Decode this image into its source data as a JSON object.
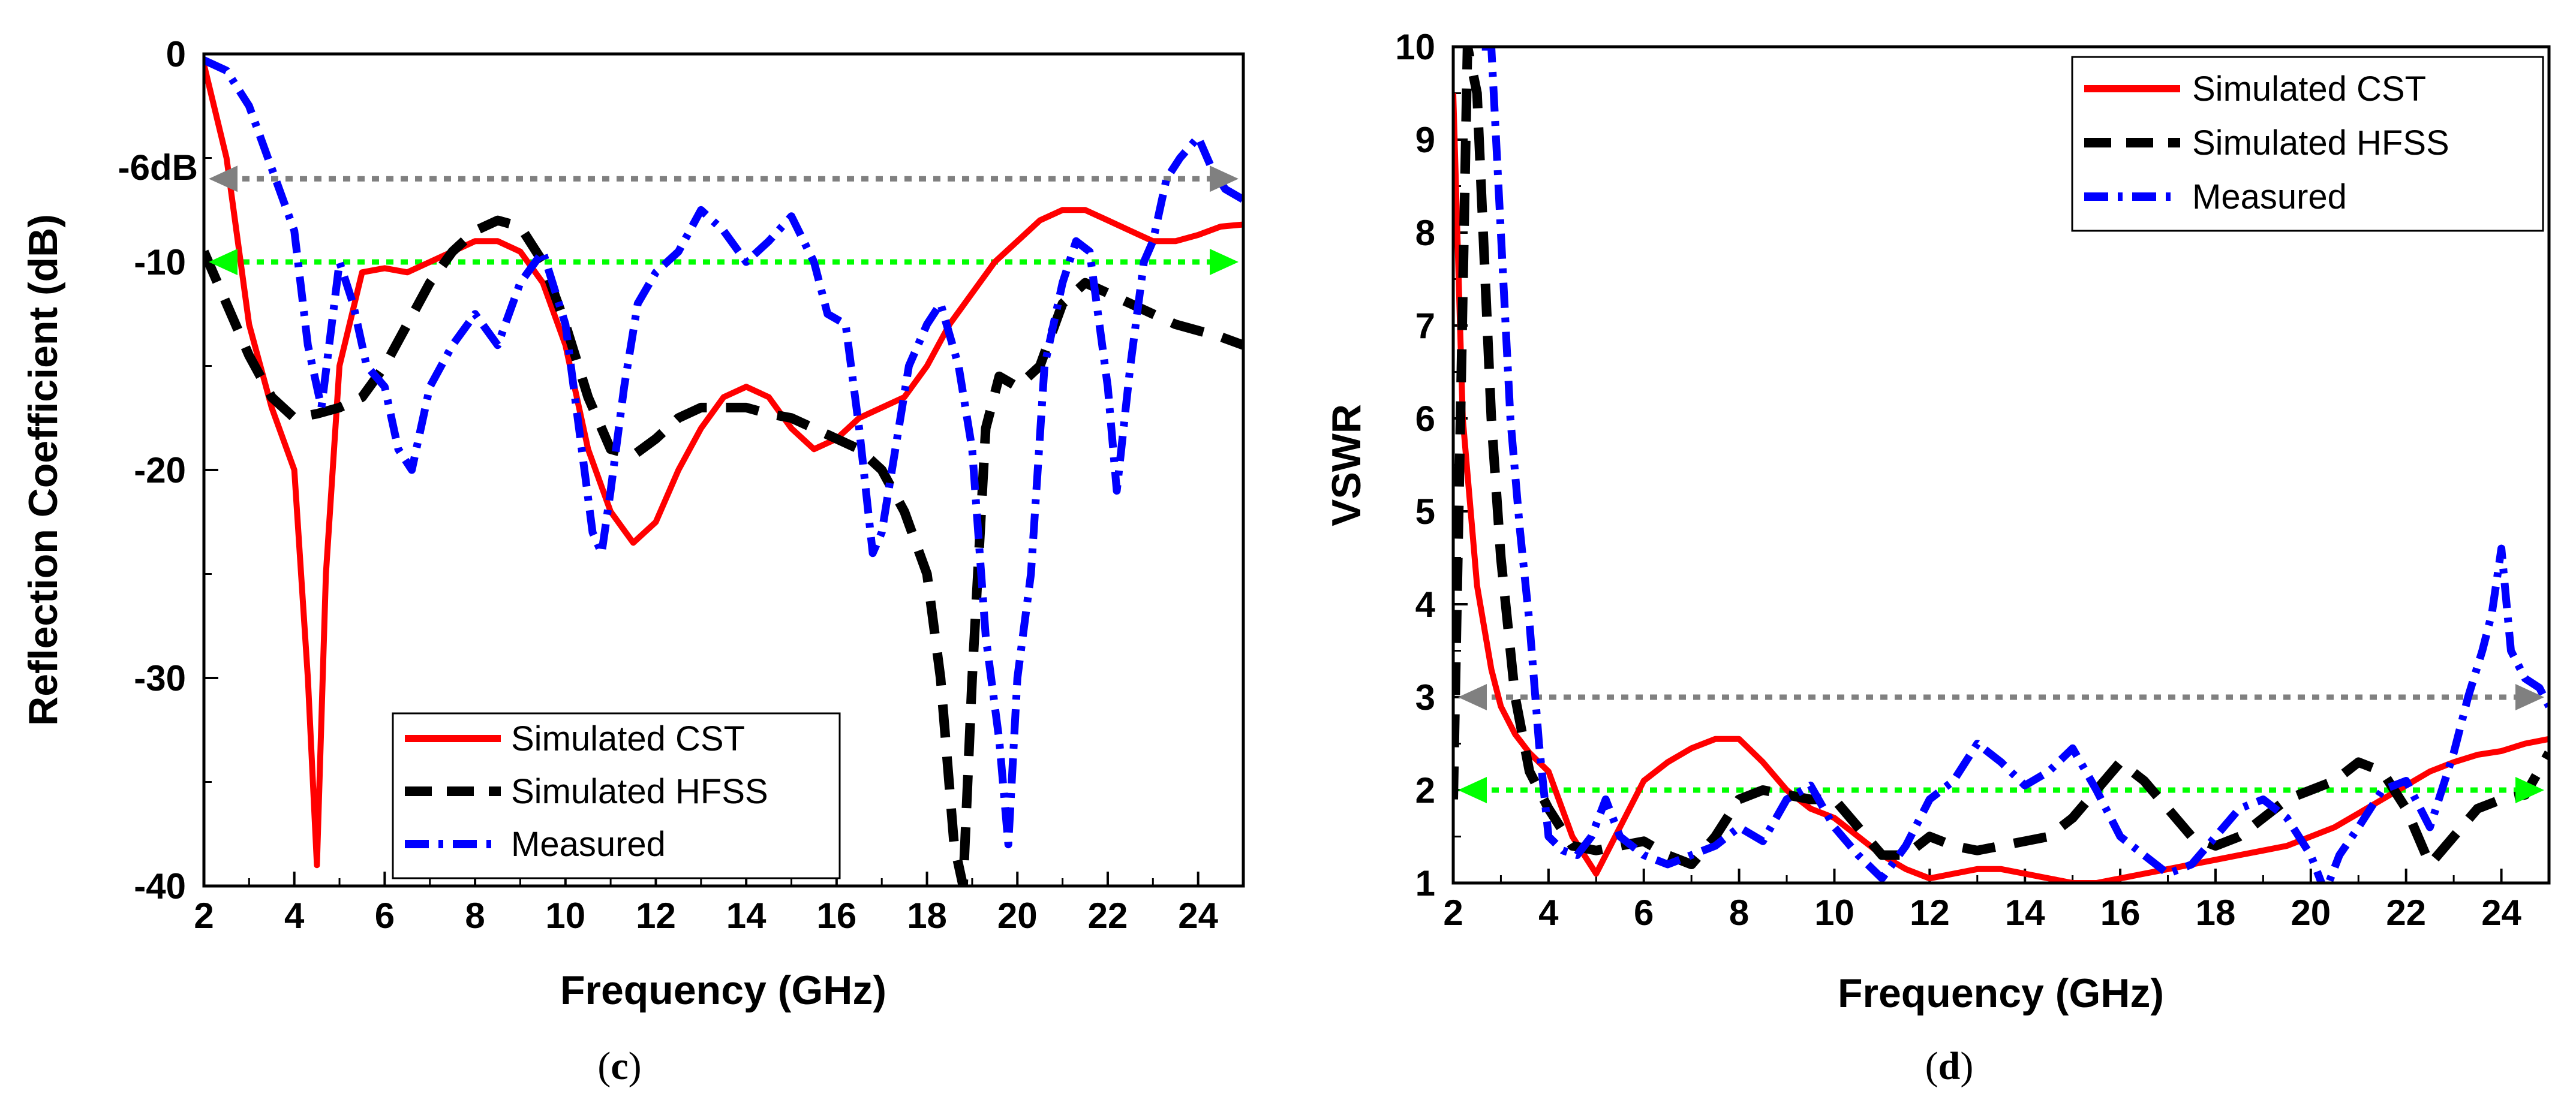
{
  "colors": {
    "cst": "#ff0000",
    "hfss": "#000000",
    "measured": "#0000ff",
    "ref6": "#808080",
    "ref10": "#00ff00"
  },
  "chart_data": [
    {
      "type": "line",
      "title": "",
      "caption_prefix": "(",
      "caption_letter": "c",
      "caption_suffix": ")",
      "xlabel": "Frequency (GHz)",
      "ylabel": "Reflection Coefficient (dB)",
      "xlim": [
        2,
        25
      ],
      "ylim": [
        -40,
        0
      ],
      "xticks": [
        "2",
        "4",
        "6",
        "8",
        "10",
        "12",
        "14",
        "16",
        "18",
        "20",
        "22",
        "24"
      ],
      "xtick_values": [
        2,
        4,
        6,
        8,
        10,
        12,
        14,
        16,
        18,
        20,
        22,
        24
      ],
      "yticks": [
        "0",
        "-10",
        "-20",
        "-30",
        "-40"
      ],
      "ytick_values": [
        0,
        -10,
        -20,
        -30,
        -40
      ],
      "annotation": "-6dB",
      "ref_lines": [
        {
          "name": "-6 dB reference",
          "value": -6,
          "color_key": "ref6"
        },
        {
          "name": "-10 dB reference",
          "value": -10,
          "color_key": "ref10"
        }
      ],
      "legend": {
        "placement": "bottom-center",
        "entries": [
          "Simulated CST",
          "Simulated HFSS",
          "Measured"
        ]
      },
      "series": [
        {
          "name": "Simulated CST",
          "style": "solid",
          "color_key": "cst",
          "x": [
            2,
            2.5,
            3,
            3.5,
            4,
            4.3,
            4.5,
            4.7,
            5,
            5.5,
            6,
            6.5,
            7,
            7.5,
            8,
            8.5,
            9,
            9.5,
            10,
            10.5,
            11,
            11.5,
            12,
            12.5,
            13,
            13.5,
            14,
            14.5,
            15,
            15.5,
            16,
            16.5,
            17,
            17.5,
            18,
            18.5,
            19,
            19.5,
            20,
            20.5,
            21,
            21.5,
            22,
            22.5,
            23,
            23.5,
            24,
            24.5,
            25
          ],
          "y": [
            -0.5,
            -5,
            -13,
            -17,
            -20,
            -30,
            -39,
            -25,
            -15,
            -10.5,
            -10.3,
            -10.5,
            -10,
            -9.5,
            -9,
            -9,
            -9.5,
            -11,
            -14,
            -19,
            -22,
            -23.5,
            -22.5,
            -20,
            -18,
            -16.5,
            -16,
            -16.5,
            -18,
            -19,
            -18.5,
            -17.5,
            -17,
            -16.5,
            -15,
            -13,
            -11.5,
            -10,
            -9,
            -8,
            -7.5,
            -7.5,
            -8,
            -8.5,
            -9,
            -9,
            -8.7,
            -8.3,
            -8.2
          ]
        },
        {
          "name": "Simulated HFSS",
          "style": "dashed",
          "color_key": "hfss",
          "x": [
            2,
            2.5,
            3,
            3.5,
            4,
            4.5,
            5,
            5.5,
            6,
            6.5,
            7,
            7.5,
            8,
            8.5,
            9,
            9.5,
            10,
            10.5,
            11,
            11.5,
            12,
            12.5,
            13,
            13.5,
            14,
            14.5,
            15,
            15.5,
            16,
            16.5,
            17,
            17.5,
            18,
            18.3,
            18.6,
            18.8,
            19,
            19.3,
            19.6,
            20,
            20.5,
            21,
            21.5,
            22,
            22.5,
            23,
            23.5,
            24,
            24.5,
            25
          ],
          "y": [
            -9.5,
            -12,
            -14.5,
            -16.5,
            -17.5,
            -17.3,
            -17,
            -16.5,
            -15,
            -13,
            -11,
            -9.5,
            -8.5,
            -8,
            -8.3,
            -10,
            -13,
            -16.5,
            -19,
            -19.3,
            -18.5,
            -17.5,
            -17,
            -17,
            -17,
            -17.3,
            -17.5,
            -18,
            -18.5,
            -19,
            -20,
            -22,
            -25,
            -30,
            -38,
            -40,
            -30,
            -18,
            -15.5,
            -16,
            -15,
            -12,
            -11,
            -11.5,
            -12,
            -12.5,
            -13,
            -13.3,
            -13.6,
            -14
          ]
        },
        {
          "name": "Measured",
          "style": "dashdot",
          "color_key": "measured",
          "x": [
            2,
            2.5,
            3,
            3.5,
            4,
            4.3,
            4.6,
            5,
            5.3,
            5.6,
            6,
            6.3,
            6.6,
            7,
            7.5,
            8,
            8.5,
            9,
            9.5,
            10,
            10.3,
            10.6,
            10.8,
            11,
            11.3,
            11.6,
            12,
            12.5,
            13,
            13.5,
            14,
            14.5,
            15,
            15.5,
            15.8,
            16.2,
            16.5,
            16.8,
            17,
            17.3,
            17.6,
            18,
            18.3,
            18.7,
            19,
            19.3,
            19.6,
            19.8,
            20,
            20.3,
            20.6,
            21,
            21.3,
            21.6,
            22,
            22.2,
            22.5,
            22.8,
            23,
            23.3,
            23.6,
            24,
            24.3,
            24.6,
            25
          ],
          "y": [
            -0.3,
            -0.8,
            -2.5,
            -5.5,
            -8.5,
            -14,
            -17,
            -10,
            -12,
            -15,
            -16,
            -19,
            -20,
            -16,
            -14,
            -12.5,
            -14,
            -11,
            -9.5,
            -13,
            -18,
            -23,
            -24,
            -21,
            -16,
            -12,
            -10.5,
            -9.5,
            -7.5,
            -8.5,
            -10,
            -9,
            -7.8,
            -10,
            -12.5,
            -13,
            -18,
            -24,
            -23,
            -19,
            -15,
            -13,
            -12,
            -15,
            -19,
            -28,
            -33,
            -38,
            -30,
            -25,
            -15,
            -11,
            -9,
            -9.5,
            -16,
            -21,
            -15,
            -10,
            -9,
            -6,
            -5,
            -4,
            -5.5,
            -6.5,
            -7
          ]
        }
      ]
    },
    {
      "type": "line",
      "title": "",
      "caption_prefix": "(",
      "caption_letter": "d",
      "caption_suffix": ")",
      "xlabel": "Frequency (GHz)",
      "ylabel": "VSWR",
      "xlim": [
        2,
        25
      ],
      "ylim": [
        1,
        10
      ],
      "xticks": [
        "2",
        "4",
        "6",
        "8",
        "10",
        "12",
        "14",
        "16",
        "18",
        "20",
        "22",
        "24"
      ],
      "xtick_values": [
        2,
        4,
        6,
        8,
        10,
        12,
        14,
        16,
        18,
        20,
        22,
        24
      ],
      "yticks": [
        "1",
        "2",
        "3",
        "4",
        "5",
        "6",
        "7",
        "8",
        "9",
        "10"
      ],
      "ytick_values": [
        1,
        2,
        3,
        4,
        5,
        6,
        7,
        8,
        9,
        10
      ],
      "ref_lines": [
        {
          "name": "VSWR 3 reference",
          "value": 3,
          "color_key": "ref6"
        },
        {
          "name": "VSWR 2 reference",
          "value": 2,
          "color_key": "ref10"
        }
      ],
      "legend": {
        "placement": "top-right",
        "entries": [
          "Simulated CST",
          "Simulated HFSS",
          "Measured"
        ]
      },
      "series": [
        {
          "name": "Simulated CST",
          "style": "solid",
          "color_key": "cst",
          "x": [
            2,
            2.2,
            2.5,
            2.8,
            3,
            3.3,
            3.6,
            4,
            4.5,
            5,
            5.5,
            6,
            6.5,
            7,
            7.5,
            8,
            8.5,
            9,
            9.5,
            10,
            10.5,
            11,
            11.5,
            12,
            12.5,
            13,
            13.5,
            14,
            14.5,
            15,
            15.5,
            16,
            16.5,
            17,
            17.5,
            18,
            18.5,
            19,
            19.5,
            20,
            20.5,
            21,
            21.5,
            22,
            22.5,
            23,
            23.5,
            24,
            24.5,
            25
          ],
          "y": [
            9.5,
            6,
            4.2,
            3.3,
            2.9,
            2.6,
            2.4,
            2.2,
            1.5,
            1.1,
            1.6,
            2.1,
            2.3,
            2.45,
            2.55,
            2.55,
            2.3,
            2,
            1.8,
            1.7,
            1.5,
            1.3,
            1.15,
            1.05,
            1.1,
            1.15,
            1.15,
            1.1,
            1.05,
            1.0,
            1.0,
            1.05,
            1.1,
            1.15,
            1.2,
            1.25,
            1.3,
            1.35,
            1.4,
            1.5,
            1.6,
            1.75,
            1.9,
            2.05,
            2.2,
            2.3,
            2.38,
            2.42,
            2.5,
            2.55
          ]
        },
        {
          "name": "Simulated HFSS",
          "style": "dashed",
          "color_key": "hfss",
          "x": [
            2,
            2.3,
            2.5,
            2.8,
            3,
            3.3,
            3.6,
            4,
            4.5,
            5,
            5.5,
            6,
            6.5,
            7,
            7.5,
            8,
            8.5,
            9,
            9.5,
            10,
            10.5,
            11,
            11.5,
            12,
            12.5,
            13,
            13.5,
            14,
            14.5,
            15,
            15.5,
            16,
            16.5,
            17,
            17.5,
            18,
            18.5,
            19,
            19.5,
            20,
            20.5,
            21,
            21.5,
            22,
            22.5,
            23,
            23.5,
            24,
            24.5,
            25
          ],
          "y": [
            1.9,
            10,
            9.5,
            6,
            4.5,
            3,
            2.2,
            1.8,
            1.4,
            1.35,
            1.4,
            1.45,
            1.3,
            1.2,
            1.5,
            1.9,
            2,
            1.95,
            1.9,
            1.9,
            1.6,
            1.3,
            1.3,
            1.5,
            1.4,
            1.35,
            1.4,
            1.45,
            1.5,
            1.7,
            2.0,
            2.3,
            2.1,
            1.8,
            1.5,
            1.4,
            1.5,
            1.7,
            1.9,
            2.0,
            2.1,
            2.3,
            2.2,
            1.8,
            1.2,
            1.5,
            1.8,
            1.9,
            1.95,
            2.4
          ]
        },
        {
          "name": "Measured",
          "style": "dashdot",
          "color_key": "measured",
          "x": [
            2.6,
            2.8,
            3,
            3.2,
            3.4,
            3.6,
            3.8,
            4,
            4.3,
            4.6,
            4.9,
            5.2,
            5.5,
            6,
            6.5,
            7,
            7.5,
            8,
            8.5,
            9,
            9.5,
            10,
            10.5,
            10.8,
            11,
            11.5,
            12,
            12.5,
            13,
            13.5,
            14,
            14.5,
            15,
            15.5,
            16,
            16.5,
            17,
            17.5,
            18,
            18.5,
            19,
            19.5,
            20,
            20.3,
            20.6,
            21,
            21.5,
            22,
            22.5,
            23,
            23.3,
            23.6,
            23.8,
            24,
            24.2,
            24.5,
            24.8,
            25
          ],
          "y": [
            10,
            10,
            8,
            6,
            4.8,
            3.8,
            2.5,
            1.5,
            1.35,
            1.3,
            1.5,
            1.9,
            1.5,
            1.3,
            1.2,
            1.3,
            1.4,
            1.6,
            1.45,
            1.9,
            2.05,
            1.6,
            1.3,
            1.15,
            1.05,
            1.4,
            1.9,
            2.1,
            2.5,
            2.3,
            2.05,
            2.2,
            2.45,
            2.0,
            1.5,
            1.3,
            1.1,
            1.2,
            1.5,
            1.8,
            1.9,
            1.7,
            1.3,
            0.9,
            1.3,
            1.6,
            2.0,
            2.1,
            1.6,
            2.4,
            3.0,
            3.5,
            3.9,
            4.6,
            3.5,
            3.2,
            3.1,
            2.9
          ]
        }
      ]
    }
  ]
}
